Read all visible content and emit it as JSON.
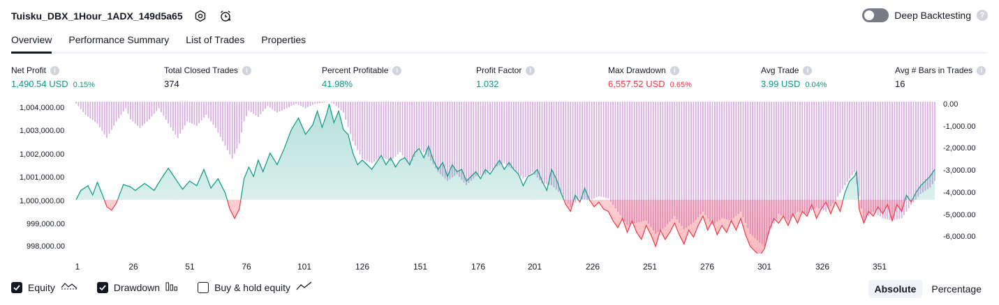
{
  "header": {
    "strategy_name": "Tuisku_DBX_1Hour_1ADX_149d5a65",
    "deep_backtesting_label": "Deep Backtesting",
    "deep_backtesting_on": false,
    "help_glyph": "?",
    "settings_icon": "gear-icon",
    "alert_icon": "alarm-clock-icon"
  },
  "tabs": [
    {
      "label": "Overview",
      "active": true
    },
    {
      "label": "Performance Summary",
      "active": false
    },
    {
      "label": "List of Trades",
      "active": false
    },
    {
      "label": "Properties",
      "active": false
    }
  ],
  "metrics": [
    {
      "label": "Net Profit",
      "value": "1,490.54 USD",
      "pct": "0.15%",
      "color": "#089981"
    },
    {
      "label": "Total Closed Trades",
      "value": "374",
      "pct": "",
      "color": "#131722"
    },
    {
      "label": "Percent Profitable",
      "value": "41.98%",
      "pct": "",
      "color": "#089981"
    },
    {
      "label": "Profit Factor",
      "value": "1.032",
      "pct": "",
      "color": "#089981"
    },
    {
      "label": "Max Drawdown",
      "value": "6,557.52 USD",
      "pct": "0.65%",
      "color": "#f23645"
    },
    {
      "label": "Avg Trade",
      "value": "3.99 USD",
      "pct": "0.04%",
      "color": "#089981"
    },
    {
      "label": "Avg # Bars in Trades",
      "value": "16",
      "pct": "",
      "color": "#131722"
    }
  ],
  "info_glyph": "i",
  "chart_data": {
    "type": "line",
    "left_axis_ticks": [
      "1,004,000.00",
      "1,003,000.00",
      "1,002,000.00",
      "1,001,000.00",
      "1,000,000.00",
      "999,000.00",
      "998,000.00"
    ],
    "right_axis_ticks": [
      "0.00",
      "-1,000.00",
      "-2,000.00",
      "-3,000.00",
      "-4,000.00",
      "-5,000.00",
      "-6,000.00"
    ],
    "x_ticks": [
      "1",
      "26",
      "51",
      "76",
      "101",
      "126",
      "151",
      "176",
      "201",
      "226",
      "251",
      "276",
      "301",
      "326",
      "351"
    ],
    "baseline": 1000000,
    "equity_ylim": [
      997700,
      1004200
    ],
    "drawdown_ylim": [
      -6900,
      0
    ],
    "equity": [
      [
        1,
        1000000
      ],
      [
        3,
        1000400
      ],
      [
        6,
        1000600
      ],
      [
        8,
        1000200
      ],
      [
        10,
        1000750
      ],
      [
        12,
        1000250
      ],
      [
        14,
        999700
      ],
      [
        16,
        999550
      ],
      [
        18,
        999850
      ],
      [
        21,
        1000650
      ],
      [
        24,
        1000550
      ],
      [
        26,
        1000400
      ],
      [
        30,
        1000700
      ],
      [
        34,
        1000400
      ],
      [
        37,
        1000900
      ],
      [
        40,
        1001350
      ],
      [
        43,
        1000900
      ],
      [
        46,
        1000450
      ],
      [
        49,
        1000800
      ],
      [
        52,
        1000600
      ],
      [
        55,
        1001300
      ],
      [
        58,
        1000500
      ],
      [
        61,
        1000900
      ],
      [
        64,
        1000300
      ],
      [
        66,
        999600
      ],
      [
        68,
        999200
      ],
      [
        70,
        999600
      ],
      [
        72,
        1000900
      ],
      [
        74,
        1001400
      ],
      [
        76,
        1001000
      ],
      [
        78,
        1001700
      ],
      [
        80,
        1001200
      ],
      [
        83,
        1002000
      ],
      [
        86,
        1001500
      ],
      [
        89,
        1002200
      ],
      [
        92,
        1003000
      ],
      [
        95,
        1003500
      ],
      [
        98,
        1002800
      ],
      [
        101,
        1003200
      ],
      [
        103,
        1003800
      ],
      [
        105,
        1003100
      ],
      [
        107,
        1003700
      ],
      [
        108,
        1004100
      ],
      [
        110,
        1003300
      ],
      [
        112,
        1003800
      ],
      [
        114,
        1003000
      ],
      [
        116,
        1002800
      ],
      [
        118,
        1002000
      ],
      [
        120,
        1001500
      ],
      [
        122,
        1001700
      ],
      [
        124,
        1001500
      ],
      [
        126,
        1001300
      ],
      [
        128,
        1001600
      ],
      [
        130,
        1001900
      ],
      [
        132,
        1001500
      ],
      [
        134,
        1001800
      ],
      [
        136,
        1001400
      ],
      [
        138,
        1001700
      ],
      [
        140,
        1001800
      ],
      [
        142,
        1001500
      ],
      [
        144,
        1002000
      ],
      [
        146,
        1002200
      ],
      [
        148,
        1001800
      ],
      [
        150,
        1002300
      ],
      [
        152,
        1001700
      ],
      [
        154,
        1001300
      ],
      [
        156,
        1001600
      ],
      [
        158,
        1001000
      ],
      [
        160,
        1001500
      ],
      [
        162,
        1001200
      ],
      [
        164,
        1001300
      ],
      [
        166,
        1000800
      ],
      [
        168,
        1001000
      ],
      [
        170,
        1001200
      ],
      [
        172,
        1000900
      ],
      [
        174,
        1001300
      ],
      [
        176,
        1001100
      ],
      [
        178,
        1001400
      ],
      [
        180,
        1001700
      ],
      [
        182,
        1001300
      ],
      [
        184,
        1001600
      ],
      [
        186,
        1001300
      ],
      [
        188,
        1001100
      ],
      [
        190,
        1000600
      ],
      [
        192,
        1001000
      ],
      [
        194,
        1001100
      ],
      [
        196,
        1001300
      ],
      [
        198,
        1000800
      ],
      [
        200,
        1000400
      ],
      [
        202,
        1001300
      ],
      [
        204,
        1000900
      ],
      [
        206,
        1000300
      ],
      [
        208,
        999800
      ],
      [
        210,
        999500
      ],
      [
        212,
        1000200
      ],
      [
        214,
        999900
      ],
      [
        216,
        1000500
      ],
      [
        218,
        1000000
      ],
      [
        220,
        999700
      ],
      [
        222,
        999900
      ],
      [
        224,
        999600
      ],
      [
        226,
        999500
      ],
      [
        228,
        999100
      ],
      [
        230,
        998800
      ],
      [
        232,
        999200
      ],
      [
        234,
        998600
      ],
      [
        236,
        999100
      ],
      [
        238,
        998600
      ],
      [
        240,
        998300
      ],
      [
        242,
        998900
      ],
      [
        244,
        998500
      ],
      [
        246,
        998000
      ],
      [
        248,
        998700
      ],
      [
        250,
        998300
      ],
      [
        252,
        998600
      ],
      [
        254,
        999000
      ],
      [
        256,
        998500
      ],
      [
        258,
        998100
      ],
      [
        260,
        998700
      ],
      [
        262,
        998400
      ],
      [
        264,
        998900
      ],
      [
        266,
        999300
      ],
      [
        268,
        998700
      ],
      [
        270,
        999100
      ],
      [
        272,
        998500
      ],
      [
        274,
        998900
      ],
      [
        276,
        998600
      ],
      [
        278,
        999100
      ],
      [
        280,
        998700
      ],
      [
        282,
        999200
      ],
      [
        284,
        998500
      ],
      [
        286,
        998000
      ],
      [
        288,
        997800
      ],
      [
        290,
        997600
      ],
      [
        292,
        997900
      ],
      [
        294,
        998700
      ],
      [
        296,
        999200
      ],
      [
        298,
        999000
      ],
      [
        300,
        999300
      ],
      [
        302,
        998900
      ],
      [
        304,
        999400
      ],
      [
        306,
        999000
      ],
      [
        308,
        999500
      ],
      [
        310,
        999300
      ],
      [
        312,
        999800
      ],
      [
        314,
        999200
      ],
      [
        316,
        999600
      ],
      [
        318,
        999900
      ],
      [
        320,
        999400
      ],
      [
        322,
        999900
      ],
      [
        324,
        999500
      ],
      [
        326,
        1000300
      ],
      [
        328,
        1000800
      ],
      [
        330,
        1001000
      ],
      [
        331,
        1001200
      ],
      [
        332,
        999600
      ],
      [
        334,
        999000
      ],
      [
        336,
        999500
      ],
      [
        338,
        999300
      ],
      [
        340,
        999700
      ],
      [
        342,
        999400
      ],
      [
        344,
        999800
      ],
      [
        346,
        999100
      ],
      [
        348,
        999800
      ],
      [
        350,
        999500
      ],
      [
        352,
        1000200
      ],
      [
        354,
        999900
      ],
      [
        356,
        1000300
      ],
      [
        358,
        1000600
      ],
      [
        360,
        1000800
      ],
      [
        362,
        1001000
      ],
      [
        364,
        1001300
      ]
    ],
    "drawdown_bars": [
      [
        1,
        -80
      ],
      [
        5,
        -600
      ],
      [
        10,
        -1000
      ],
      [
        14,
        -1650
      ],
      [
        18,
        -900
      ],
      [
        22,
        -300
      ],
      [
        24,
        -800
      ],
      [
        28,
        -1200
      ],
      [
        32,
        -800
      ],
      [
        36,
        -300
      ],
      [
        40,
        -1000
      ],
      [
        44,
        -1650
      ],
      [
        48,
        -900
      ],
      [
        52,
        -1100
      ],
      [
        56,
        -600
      ],
      [
        60,
        -1200
      ],
      [
        64,
        -2000
      ],
      [
        67,
        -2600
      ],
      [
        70,
        -1900
      ],
      [
        72,
        -900
      ],
      [
        74,
        -400
      ],
      [
        78,
        -700
      ],
      [
        82,
        -200
      ],
      [
        86,
        -500
      ],
      [
        90,
        -300
      ],
      [
        94,
        -100
      ],
      [
        98,
        -300
      ],
      [
        102,
        -100
      ],
      [
        108,
        0
      ],
      [
        110,
        -100
      ],
      [
        114,
        -500
      ],
      [
        118,
        -1800
      ],
      [
        122,
        -2600
      ],
      [
        126,
        -2800
      ],
      [
        130,
        -2500
      ],
      [
        134,
        -2700
      ],
      [
        138,
        -2300
      ],
      [
        142,
        -2900
      ],
      [
        146,
        -2100
      ],
      [
        150,
        -2500
      ],
      [
        154,
        -3200
      ],
      [
        158,
        -3600
      ],
      [
        162,
        -3300
      ],
      [
        166,
        -3800
      ],
      [
        170,
        -3400
      ],
      [
        174,
        -3300
      ],
      [
        178,
        -3000
      ],
      [
        182,
        -2800
      ],
      [
        186,
        -3100
      ],
      [
        190,
        -3500
      ],
      [
        194,
        -3200
      ],
      [
        198,
        -3700
      ],
      [
        202,
        -3800
      ],
      [
        206,
        -4200
      ],
      [
        210,
        -4800
      ],
      [
        214,
        -4400
      ],
      [
        218,
        -4500
      ],
      [
        222,
        -4300
      ],
      [
        226,
        -4400
      ],
      [
        230,
        -5000
      ],
      [
        234,
        -5600
      ],
      [
        238,
        -5500
      ],
      [
        242,
        -5400
      ],
      [
        246,
        -6000
      ],
      [
        250,
        -5700
      ],
      [
        254,
        -5200
      ],
      [
        258,
        -5800
      ],
      [
        262,
        -5500
      ],
      [
        266,
        -5000
      ],
      [
        270,
        -5600
      ],
      [
        274,
        -5300
      ],
      [
        278,
        -5400
      ],
      [
        282,
        -5000
      ],
      [
        286,
        -6000
      ],
      [
        290,
        -6400
      ],
      [
        292,
        -6557
      ],
      [
        294,
        -6000
      ],
      [
        298,
        -5100
      ],
      [
        302,
        -5400
      ],
      [
        306,
        -5000
      ],
      [
        310,
        -5100
      ],
      [
        314,
        -4800
      ],
      [
        318,
        -5000
      ],
      [
        322,
        -4500
      ],
      [
        326,
        -3800
      ],
      [
        330,
        -3200
      ],
      [
        332,
        -4300
      ],
      [
        334,
        -5400
      ],
      [
        338,
        -5000
      ],
      [
        342,
        -5300
      ],
      [
        346,
        -5400
      ],
      [
        350,
        -5300
      ],
      [
        354,
        -4700
      ],
      [
        358,
        -4200
      ],
      [
        362,
        -3900
      ],
      [
        364,
        -3600
      ]
    ],
    "colors": {
      "equity": "#089981",
      "equity_below": "#f23645",
      "drawdown": "#ce93d8"
    },
    "grid": false
  },
  "legend": {
    "items": [
      {
        "label": "Equity",
        "checked": true,
        "icon": "equity-line-icon"
      },
      {
        "label": "Drawdown",
        "checked": true,
        "icon": "drawdown-bars-icon"
      },
      {
        "label": "Buy & hold equity",
        "checked": false,
        "icon": "buy-hold-line-icon"
      }
    ],
    "modes": [
      {
        "label": "Absolute",
        "selected": true
      },
      {
        "label": "Percentage",
        "selected": false
      }
    ]
  }
}
